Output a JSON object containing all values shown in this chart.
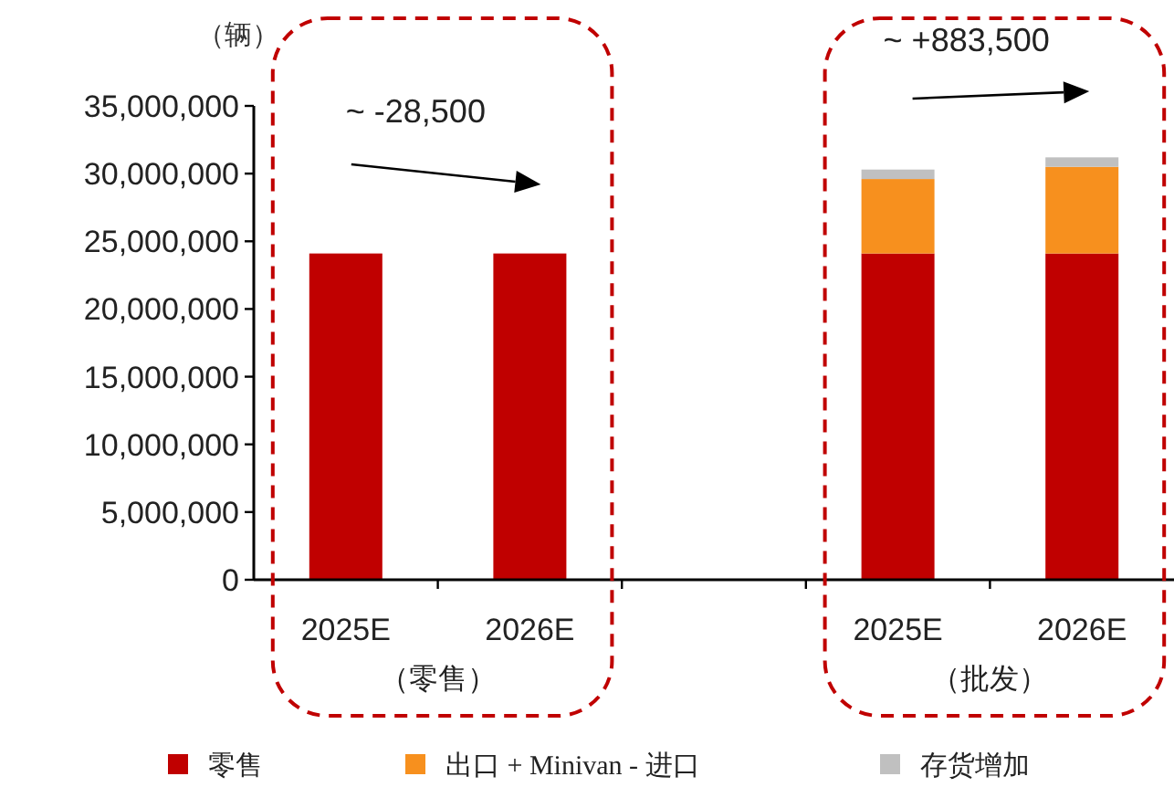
{
  "chart_data": {
    "type": "bar",
    "stacked": true,
    "ylabel": "（辆）",
    "categories": [
      "2025E",
      "2026E",
      null,
      "2025E",
      "2026E"
    ],
    "series": [
      {
        "name": "零售",
        "color": "#c00000",
        "values": [
          24100000,
          24100000,
          null,
          24100000,
          24100000
        ]
      },
      {
        "name": "出口 + Minivan - 进口",
        "color": "#f7901e",
        "values": [
          null,
          null,
          null,
          5500000,
          6400000
        ]
      },
      {
        "name": "存货增加",
        "color": "#c0c0c0",
        "values": [
          null,
          null,
          null,
          700000,
          700000
        ]
      }
    ],
    "ylim": [
      0,
      35000000
    ],
    "yticks": [
      0,
      {
        "value": 5000000,
        "label": "5,000,000"
      },
      {
        "value": 10000000,
        "label": "10,000,000"
      },
      {
        "value": 15000000,
        "label": "15,000,000"
      },
      {
        "value": 20000000,
        "label": "20,000,000"
      },
      {
        "value": 25000000,
        "label": "25,000,000"
      },
      {
        "value": 30000000,
        "label": "30,000,000"
      },
      {
        "value": 35000000,
        "label": "35,000,000"
      }
    ],
    "annotations": [
      "~ -28,500",
      "~ +883,500",
      "（零售）",
      "（批发）"
    ],
    "legend": "bottom",
    "grid": false
  }
}
